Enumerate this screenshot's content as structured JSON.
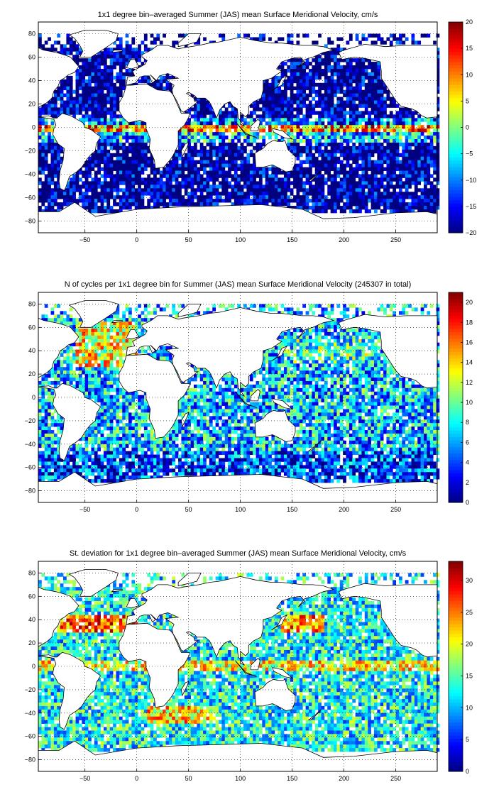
{
  "chart_data": [
    {
      "type": "heatmap",
      "title": "1x1 degree bin–averaged Summer (JAS) mean Surface Meridional Velocity, cm/s",
      "xlabel": "",
      "ylabel": "",
      "xlim": [
        -95,
        290
      ],
      "ylim": [
        -90,
        90
      ],
      "xticks": [
        -50,
        0,
        50,
        100,
        150,
        200,
        250
      ],
      "yticks": [
        80,
        60,
        40,
        20,
        0,
        -20,
        -40,
        -60,
        -80
      ],
      "grid": true,
      "colorbar": {
        "min": -20,
        "max": 20,
        "ticks": [
          20,
          15,
          10,
          5,
          0,
          -5,
          -10,
          -15,
          -20
        ],
        "colormap": "jet"
      },
      "field": "velocity"
    },
    {
      "type": "heatmap",
      "title": "N of cycles per 1x1 degree bin for Summer (JAS) mean Surface Meridional Velocity (245307 in total)",
      "xlabel": "",
      "ylabel": "",
      "xlim": [
        -95,
        290
      ],
      "ylim": [
        -90,
        90
      ],
      "xticks": [
        -50,
        0,
        50,
        100,
        150,
        200,
        250
      ],
      "yticks": [
        80,
        60,
        40,
        20,
        0,
        -20,
        -40,
        -60,
        -80
      ],
      "grid": true,
      "colorbar": {
        "min": 0,
        "max": 21,
        "ticks": [
          20,
          18,
          16,
          14,
          12,
          10,
          8,
          6,
          4,
          2,
          0
        ],
        "colormap": "jet"
      },
      "field": "count"
    },
    {
      "type": "heatmap",
      "title": "St. deviation for 1x1 degree bin–averaged Summer (JAS) mean Surface Meridional Velocity, cm/s",
      "xlabel": "",
      "ylabel": "",
      "xlim": [
        -95,
        290
      ],
      "ylim": [
        -90,
        90
      ],
      "xticks": [
        -50,
        0,
        50,
        100,
        150,
        200,
        250
      ],
      "yticks": [
        80,
        60,
        40,
        20,
        0,
        -20,
        -40,
        -60,
        -80
      ],
      "grid": true,
      "colorbar": {
        "min": 0,
        "max": 33,
        "ticks": [
          30,
          25,
          20,
          15,
          10,
          5,
          0
        ],
        "colormap": "jet"
      },
      "field": "stdev"
    }
  ]
}
